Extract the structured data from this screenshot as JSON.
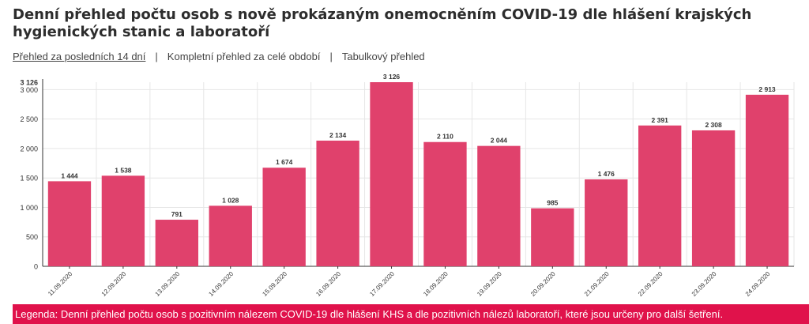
{
  "title": "Denní přehled počtu osob s nově prokázaným onemocněním COVID-19 dle hlášení krajských hygienických stanic a laboratoří",
  "tabs": [
    {
      "label": "Přehled za posledních 14 dní",
      "active": true
    },
    {
      "label": "Kompletní přehled za celé období",
      "active": false
    },
    {
      "label": "Tabulkový přehled",
      "active": false
    }
  ],
  "tab_separator": "|",
  "legend": "Legenda: Denní přehled počtu osob s pozitivním nálezem COVID-19 dle hlášení KHS a dle pozitivních nálezů laboratoří, které jsou určeny pro další šetření.",
  "colors": {
    "bar": "#e0416c",
    "legend_bg": "#e0124b",
    "grid": "#e6e6e6",
    "axis": "#333333"
  },
  "chart_data": {
    "type": "bar",
    "categories": [
      "11.09.2020",
      "12.09.2020",
      "13.09.2020",
      "14.09.2020",
      "15.09.2020",
      "16.09.2020",
      "17.09.2020",
      "18.09.2020",
      "19.09.2020",
      "20.09.2020",
      "21.09.2020",
      "22.09.2020",
      "23.09.2020",
      "24.09.2020"
    ],
    "values": [
      1444,
      1538,
      791,
      1028,
      1674,
      2134,
      3126,
      2110,
      2044,
      985,
      1476,
      2391,
      2308,
      2913
    ],
    "value_labels": [
      "1 444",
      "1 538",
      "791",
      "1 028",
      "1 674",
      "2 134",
      "3 126",
      "2 110",
      "2 044",
      "985",
      "1 476",
      "2 391",
      "2 308",
      "2 913"
    ],
    "ylim": [
      0,
      3126
    ],
    "yticks": [
      0,
      500,
      1000,
      1500,
      2000,
      2500,
      3000,
      3126
    ],
    "ytick_labels": [
      "0",
      "500",
      "1 000",
      "1 500",
      "2 000",
      "2 500",
      "3 000",
      "3 126"
    ],
    "grid": true
  }
}
